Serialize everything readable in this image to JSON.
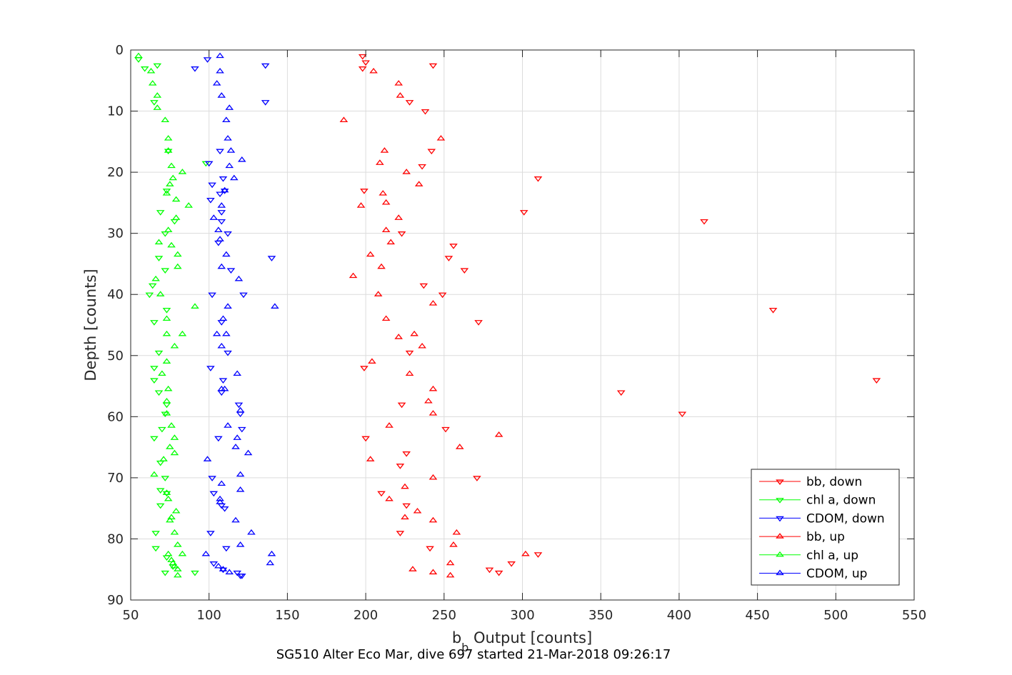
{
  "chart_data": {
    "type": "scatter",
    "title": "",
    "xlabel_main": "b",
    "xlabel_sub": "b",
    "xlabel_rest": " Output [counts]",
    "ylabel": "Depth [counts]",
    "caption": "SG510 Alter Eco Mar, dive 697 started 21-Mar-2018 09:26:17",
    "xlim": [
      50,
      550
    ],
    "ylim": [
      0,
      90
    ],
    "y_reversed": true,
    "grid": true,
    "legend_position": "bottom-right",
    "xticks": [
      50,
      100,
      150,
      200,
      250,
      300,
      350,
      400,
      450,
      500,
      550
    ],
    "yticks": [
      0,
      10,
      20,
      30,
      40,
      50,
      60,
      70,
      80,
      90
    ],
    "xtick_labels": [
      "50",
      "100",
      "150",
      "200",
      "250",
      "300",
      "350",
      "400",
      "450",
      "500",
      "550"
    ],
    "ytick_labels": [
      "0",
      "10",
      "20",
      "30",
      "40",
      "50",
      "60",
      "70",
      "80",
      "90"
    ],
    "series": [
      {
        "name": "bb, down",
        "color": "#ff0000",
        "marker": "triangle-down",
        "points": [
          [
            198,
            1
          ],
          [
            200,
            2
          ],
          [
            243,
            2.5
          ],
          [
            198,
            3
          ],
          [
            228,
            8.5
          ],
          [
            238,
            10
          ],
          [
            242,
            16.5
          ],
          [
            236,
            19
          ],
          [
            310,
            21
          ],
          [
            199,
            23
          ],
          [
            301,
            26.5
          ],
          [
            416,
            28
          ],
          [
            223,
            30
          ],
          [
            256,
            32
          ],
          [
            253,
            34
          ],
          [
            263,
            36
          ],
          [
            237,
            38.5
          ],
          [
            249,
            40
          ],
          [
            460,
            42.5
          ],
          [
            272,
            44.5
          ],
          [
            228,
            49.5
          ],
          [
            199,
            52
          ],
          [
            526,
            54
          ],
          [
            363,
            56
          ],
          [
            223,
            58
          ],
          [
            402,
            59.5
          ],
          [
            251,
            62
          ],
          [
            200,
            63.5
          ],
          [
            226,
            66
          ],
          [
            222,
            68
          ],
          [
            271,
            70
          ],
          [
            210,
            72.5
          ],
          [
            226,
            74.5
          ],
          [
            222,
            79
          ],
          [
            241,
            81.5
          ],
          [
            310,
            82.5
          ],
          [
            293,
            84
          ],
          [
            279,
            85
          ],
          [
            285,
            85.5
          ]
        ]
      },
      {
        "name": "chl a, down",
        "color": "#00ff00",
        "marker": "triangle-down",
        "points": [
          [
            55,
            1.5
          ],
          [
            67,
            2.5
          ],
          [
            59,
            3
          ],
          [
            65,
            8.5
          ],
          [
            74,
            16.5
          ],
          [
            98,
            18.5
          ],
          [
            73,
            23
          ],
          [
            69,
            26.5
          ],
          [
            78,
            28
          ],
          [
            72,
            30
          ],
          [
            68,
            34
          ],
          [
            72,
            36
          ],
          [
            64,
            38.5
          ],
          [
            62,
            40
          ],
          [
            73,
            42.5
          ],
          [
            65,
            44.5
          ],
          [
            68,
            49.5
          ],
          [
            65,
            52
          ],
          [
            65,
            54
          ],
          [
            68,
            56
          ],
          [
            73,
            58
          ],
          [
            72,
            59.5
          ],
          [
            70,
            62
          ],
          [
            65,
            63.5
          ],
          [
            69,
            67.5
          ],
          [
            72,
            70
          ],
          [
            69,
            72
          ],
          [
            73,
            72.5
          ],
          [
            69,
            74.5
          ],
          [
            66,
            79
          ],
          [
            66,
            81.5
          ],
          [
            73,
            83
          ],
          [
            77,
            84.5
          ],
          [
            72,
            85.5
          ],
          [
            91,
            85.5
          ]
        ]
      },
      {
        "name": "CDOM, down",
        "color": "#0000ff",
        "marker": "triangle-down",
        "points": [
          [
            99,
            1.5
          ],
          [
            136,
            2.5
          ],
          [
            91,
            3
          ],
          [
            136,
            8.5
          ],
          [
            107,
            16.5
          ],
          [
            100,
            18.5
          ],
          [
            109,
            21
          ],
          [
            102,
            22
          ],
          [
            110,
            23
          ],
          [
            107,
            23.5
          ],
          [
            101,
            24.5
          ],
          [
            108,
            26.5
          ],
          [
            108,
            28
          ],
          [
            112,
            30
          ],
          [
            106,
            31.5
          ],
          [
            114,
            36
          ],
          [
            140,
            34
          ],
          [
            102,
            40
          ],
          [
            122,
            40
          ],
          [
            108,
            44.5
          ],
          [
            112,
            49.5
          ],
          [
            101,
            52
          ],
          [
            109,
            54
          ],
          [
            108,
            56
          ],
          [
            119,
            58
          ],
          [
            120,
            59.5
          ],
          [
            121,
            62
          ],
          [
            106,
            63.5
          ],
          [
            102,
            70
          ],
          [
            103,
            72.5
          ],
          [
            108,
            74.5
          ],
          [
            110,
            75
          ],
          [
            101,
            79
          ],
          [
            111,
            81.5
          ],
          [
            103,
            84
          ],
          [
            109,
            85
          ],
          [
            118,
            85.5
          ],
          [
            120,
            86
          ],
          [
            121,
            86
          ]
        ]
      },
      {
        "name": "bb, up",
        "color": "#ff0000",
        "marker": "triangle-up",
        "points": [
          [
            205,
            3.5
          ],
          [
            221,
            5.5
          ],
          [
            222,
            7.5
          ],
          [
            186,
            11.5
          ],
          [
            248,
            14.5
          ],
          [
            212,
            16.5
          ],
          [
            209,
            18.5
          ],
          [
            226,
            20
          ],
          [
            234,
            22
          ],
          [
            211,
            23.5
          ],
          [
            213,
            25
          ],
          [
            197,
            25.5
          ],
          [
            221,
            27.5
          ],
          [
            213,
            29.5
          ],
          [
            216,
            31.5
          ],
          [
            203,
            33.5
          ],
          [
            210,
            35.5
          ],
          [
            192,
            37
          ],
          [
            208,
            40
          ],
          [
            243,
            41.5
          ],
          [
            213,
            44
          ],
          [
            231,
            46.5
          ],
          [
            221,
            47
          ],
          [
            236,
            48.5
          ],
          [
            204,
            51
          ],
          [
            228,
            53
          ],
          [
            243,
            55.5
          ],
          [
            240,
            57.5
          ],
          [
            243,
            59.5
          ],
          [
            215,
            61.5
          ],
          [
            285,
            63
          ],
          [
            260,
            65
          ],
          [
            203,
            67
          ],
          [
            243,
            70
          ],
          [
            225,
            71.5
          ],
          [
            215,
            73.5
          ],
          [
            233,
            75.5
          ],
          [
            225,
            76.5
          ],
          [
            243,
            77
          ],
          [
            258,
            79
          ],
          [
            256,
            81
          ],
          [
            302,
            82.5
          ],
          [
            254,
            84
          ],
          [
            230,
            85
          ],
          [
            243,
            85.5
          ],
          [
            254,
            86
          ]
        ]
      },
      {
        "name": "chl a, up",
        "color": "#00ff00",
        "marker": "triangle-up",
        "points": [
          [
            55,
            1
          ],
          [
            63,
            3.5
          ],
          [
            64,
            5.5
          ],
          [
            67,
            7.5
          ],
          [
            67,
            9.5
          ],
          [
            72,
            11.5
          ],
          [
            74,
            14.5
          ],
          [
            74,
            16.5
          ],
          [
            76,
            19
          ],
          [
            83,
            20
          ],
          [
            77,
            21
          ],
          [
            75,
            22
          ],
          [
            73,
            23.5
          ],
          [
            79,
            24.5
          ],
          [
            87,
            25.5
          ],
          [
            79,
            27.5
          ],
          [
            74,
            29.5
          ],
          [
            68,
            31.5
          ],
          [
            76,
            32
          ],
          [
            80,
            33.5
          ],
          [
            80,
            35.5
          ],
          [
            66,
            37.5
          ],
          [
            69,
            40
          ],
          [
            91,
            42
          ],
          [
            73,
            44
          ],
          [
            73,
            46.5
          ],
          [
            83,
            46.5
          ],
          [
            78,
            48.5
          ],
          [
            73,
            51
          ],
          [
            70,
            53
          ],
          [
            74,
            55.5
          ],
          [
            73,
            57.5
          ],
          [
            73,
            59.5
          ],
          [
            76,
            61.5
          ],
          [
            78,
            63.5
          ],
          [
            75,
            65
          ],
          [
            78,
            66
          ],
          [
            71,
            67
          ],
          [
            65,
            69.5
          ],
          [
            73,
            72.5
          ],
          [
            74,
            73.5
          ],
          [
            79,
            75.5
          ],
          [
            76,
            76.5
          ],
          [
            75,
            77
          ],
          [
            78,
            79
          ],
          [
            80,
            81
          ],
          [
            83,
            82.5
          ],
          [
            74,
            82.5
          ],
          [
            76,
            83.5
          ],
          [
            77,
            84
          ],
          [
            80,
            85
          ],
          [
            78,
            84.5
          ],
          [
            80,
            86
          ]
        ]
      },
      {
        "name": "CDOM, up",
        "color": "#0000ff",
        "marker": "triangle-up",
        "points": [
          [
            107,
            1
          ],
          [
            107,
            3.5
          ],
          [
            105,
            5.5
          ],
          [
            108,
            7.5
          ],
          [
            113,
            9.5
          ],
          [
            111,
            11.5
          ],
          [
            112,
            14.5
          ],
          [
            114,
            16.5
          ],
          [
            121,
            18
          ],
          [
            113,
            19
          ],
          [
            116,
            21
          ],
          [
            110,
            23
          ],
          [
            108,
            25.5
          ],
          [
            103,
            27.5
          ],
          [
            106,
            29.5
          ],
          [
            107,
            31
          ],
          [
            111,
            33.5
          ],
          [
            108,
            35.5
          ],
          [
            119,
            37.5
          ],
          [
            112,
            42
          ],
          [
            142,
            42
          ],
          [
            109,
            44
          ],
          [
            111,
            46.5
          ],
          [
            105,
            46.5
          ],
          [
            108,
            48.5
          ],
          [
            118,
            53
          ],
          [
            108,
            55.5
          ],
          [
            110,
            55.5
          ],
          [
            120,
            59
          ],
          [
            112,
            61.5
          ],
          [
            118,
            63.5
          ],
          [
            117,
            65
          ],
          [
            125,
            66
          ],
          [
            99,
            67
          ],
          [
            120,
            69.5
          ],
          [
            108,
            71
          ],
          [
            120,
            72
          ],
          [
            107,
            73.5
          ],
          [
            107,
            74
          ],
          [
            117,
            77
          ],
          [
            127,
            79
          ],
          [
            120,
            81
          ],
          [
            140,
            82.5
          ],
          [
            98,
            82.5
          ],
          [
            139,
            84
          ],
          [
            106,
            84.5
          ],
          [
            113,
            85.5
          ],
          [
            109,
            85
          ]
        ]
      }
    ]
  }
}
